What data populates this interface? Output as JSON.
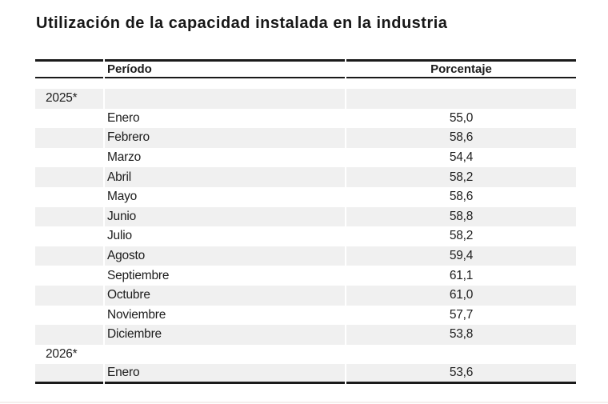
{
  "title": "Utilización de la capacidad instalada en la industria",
  "table": {
    "header": {
      "period": "Período",
      "percentage": "Porcentaje"
    },
    "rows": [
      {
        "type": "year",
        "label": "2025*",
        "value": ""
      },
      {
        "type": "month",
        "label": "Enero",
        "value": "55,0"
      },
      {
        "type": "month",
        "label": "Febrero",
        "value": "58,6"
      },
      {
        "type": "month",
        "label": "Marzo",
        "value": "54,4"
      },
      {
        "type": "month",
        "label": "Abril",
        "value": "58,2"
      },
      {
        "type": "month",
        "label": "Mayo",
        "value": "58,6"
      },
      {
        "type": "month",
        "label": "Junio",
        "value": "58,8"
      },
      {
        "type": "month",
        "label": "Julio",
        "value": "58,2"
      },
      {
        "type": "month",
        "label": "Agosto",
        "value": "59,4"
      },
      {
        "type": "month",
        "label": "Septiembre",
        "value": "61,1"
      },
      {
        "type": "month",
        "label": "Octubre",
        "value": "61,0"
      },
      {
        "type": "month",
        "label": "Noviembre",
        "value": "57,7"
      },
      {
        "type": "month",
        "label": "Diciembre",
        "value": "53,8"
      },
      {
        "type": "year",
        "label": "2026*",
        "value": ""
      },
      {
        "type": "month",
        "label": "Enero",
        "value": "53,6"
      }
    ]
  },
  "colors": {
    "stripe": "#f0f0f0",
    "rule": "#1a1a1a",
    "text": "#1c1c1c",
    "title_text": "#171717"
  },
  "chart_data": {
    "type": "table",
    "title": "Utilización de la capacidad instalada en la industria",
    "columns": [
      "Período",
      "Porcentaje"
    ],
    "groups": [
      {
        "year": "2025*",
        "months": [
          "Enero",
          "Febrero",
          "Marzo",
          "Abril",
          "Mayo",
          "Junio",
          "Julio",
          "Agosto",
          "Septiembre",
          "Octubre",
          "Noviembre",
          "Diciembre"
        ],
        "values": [
          55.0,
          58.6,
          54.4,
          58.2,
          58.6,
          58.8,
          58.2,
          59.4,
          61.1,
          61.0,
          57.7,
          53.8
        ]
      },
      {
        "year": "2026*",
        "months": [
          "Enero"
        ],
        "values": [
          53.6
        ]
      }
    ],
    "value_unit": "percent",
    "decimal_separator": ","
  }
}
